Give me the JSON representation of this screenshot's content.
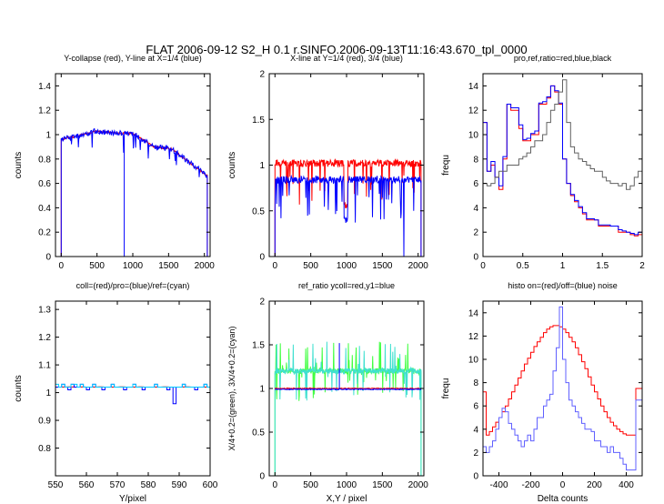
{
  "figure_title": "FLAT 2006-09-12 S2_H 0.1 r.SINFO.2006-09-13T11:16:43.670_tpl_0000",
  "chart_data": [
    {
      "type": "line",
      "title": "Y-collapse (red), Y-line at X=1/4 (blue)",
      "xlabel": "",
      "ylabel": "counts",
      "xlim": [
        -80,
        2080
      ],
      "ylim": [
        0,
        1.5
      ],
      "xticks": [
        0,
        500,
        1000,
        1500,
        2000
      ],
      "yticks": [
        0,
        0.2,
        0.4,
        0.6,
        0.8,
        1,
        1.2,
        1.4
      ],
      "series": [
        {
          "name": "Y-collapse",
          "color": "#ff0000",
          "style": "line",
          "kind": "ycollapse",
          "seed": 11,
          "noise": 0.008
        },
        {
          "name": "Y-line at X=1/4",
          "color": "#0000ff",
          "style": "line",
          "kind": "ycollapse",
          "seed": 12,
          "noise": 0.022
        }
      ]
    },
    {
      "type": "line",
      "title": "X-line at Y=1/4 (red), 3/4 (blue)",
      "xlabel": "",
      "ylabel": "counts",
      "xlim": [
        -80,
        2080
      ],
      "ylim": [
        0,
        2
      ],
      "xticks": [
        0,
        500,
        1000,
        1500,
        2000
      ],
      "yticks": [
        0,
        0.5,
        1,
        1.5,
        2
      ],
      "series": [
        {
          "name": "X-line at Y=1/4",
          "color": "#ff0000",
          "style": "line",
          "kind": "xline",
          "base": 1.02,
          "seed": 21
        },
        {
          "name": "X-line at Y=3/4",
          "color": "#0000ff",
          "style": "line",
          "kind": "xline",
          "base": 0.84,
          "seed": 22
        }
      ]
    },
    {
      "type": "line",
      "title": "pro,ref,ratio=red,blue,black",
      "xlabel": "",
      "ylabel": "frequ",
      "xlim": [
        0,
        2
      ],
      "ylim": [
        0,
        15
      ],
      "xticks": [
        0,
        0.5,
        1,
        1.5,
        2
      ],
      "yticks": [
        0,
        2,
        4,
        6,
        8,
        10,
        12,
        14
      ],
      "series": [
        {
          "name": "pro",
          "color": "#ff0000",
          "style": "step",
          "kind": "values",
          "x0": 0,
          "dx": 0.05,
          "values": [
            11,
            7,
            7.5,
            6.5,
            5.5,
            8,
            12.5,
            12,
            12,
            10.5,
            9.5,
            9.5,
            10,
            10,
            12.5,
            12.5,
            13,
            14,
            13.5,
            12.5,
            8,
            6,
            5,
            4.5,
            4,
            3.5,
            3,
            3,
            3,
            2.5,
            2.5,
            2.5,
            2.5,
            2.5,
            2,
            2,
            2,
            1.8,
            1.7,
            1.8,
            3.5
          ]
        },
        {
          "name": "ref",
          "color": "#0000ff",
          "style": "step",
          "kind": "values",
          "x0": 0,
          "dx": 0.05,
          "values": [
            11,
            7,
            7.8,
            6.5,
            5.8,
            8.2,
            12.5,
            12.2,
            12.2,
            10.8,
            9.6,
            9.7,
            10.1,
            10.3,
            12.6,
            12.7,
            13.1,
            14,
            13.6,
            12.6,
            8,
            6,
            5.1,
            4.6,
            4.1,
            3.6,
            3.1,
            3.1,
            3,
            2.6,
            2.6,
            2.6,
            2.5,
            2.5,
            2.2,
            2.1,
            2,
            1.9,
            1.8,
            2,
            4.5
          ]
        },
        {
          "name": "ratio",
          "color": "#606060",
          "style": "step",
          "kind": "values",
          "x0": 0,
          "dx": 0.05,
          "values": [
            6,
            5.8,
            6,
            6.5,
            7,
            7,
            7.5,
            7.5,
            7.5,
            8,
            8.2,
            8.5,
            9,
            9.5,
            9.5,
            10,
            11,
            12,
            12.5,
            13.5,
            14.5,
            11,
            9,
            8.5,
            8,
            7.8,
            7.5,
            7.2,
            7,
            7,
            6.5,
            6.2,
            6,
            6,
            5.8,
            6,
            5.5,
            5.8,
            6.5,
            7,
            7.5
          ]
        }
      ]
    },
    {
      "type": "line",
      "title": "coll=(red)/pro=(blue)/ref=(cyan)",
      "xlabel": "Y/pixel",
      "ylabel": "counts",
      "xlim": [
        550,
        600
      ],
      "ylim": [
        0.7,
        1.33
      ],
      "xticks": [
        550,
        560,
        570,
        580,
        590,
        600
      ],
      "yticks": [
        0.8,
        0.9,
        1,
        1.1,
        1.2,
        1.3
      ],
      "series": [
        {
          "name": "coll",
          "color": "#ff0000",
          "style": "line",
          "kind": "values",
          "x0": 550,
          "dx": 1,
          "values": [
            1.02,
            1.02,
            1.02,
            1.02,
            1.021,
            1.021,
            1.02,
            1.02,
            1.02,
            1.021,
            1.02,
            1.02,
            1.02,
            1.02,
            1.021,
            1.021,
            1.02,
            1.02,
            1.02,
            1.02,
            1.02,
            1.021,
            1.021,
            1.02,
            1.02,
            1.02,
            1.02,
            1.021,
            1.021,
            1.02,
            1.02,
            1.02,
            1.02,
            1.02,
            1.02,
            1.021,
            1.021,
            1.02,
            1.02,
            1.02,
            1.02,
            1.02,
            1.021,
            1.021,
            1.02,
            1.02,
            1.02,
            1.02,
            1.02,
            1.02,
            1.02
          ]
        },
        {
          "name": "pro",
          "color": "#0000ff",
          "style": "step",
          "kind": "values",
          "x0": 550,
          "dx": 1,
          "values": [
            1.02,
            1.02,
            1.03,
            1.02,
            1.01,
            1.03,
            1.02,
            1.02,
            1.03,
            1.02,
            1.01,
            1.02,
            1.03,
            1.02,
            1.02,
            1.01,
            1.02,
            1.02,
            1.03,
            1.02,
            1.02,
            1.02,
            1.01,
            1.02,
            1.02,
            1.03,
            1.02,
            1.02,
            1.01,
            1.02,
            1.02,
            1.02,
            1.03,
            1.02,
            1.02,
            1.02,
            1.01,
            1.02,
            0.96,
            1.02,
            1.02,
            1.03,
            1.02,
            1.02,
            1.02,
            1.01,
            1.02,
            1.02,
            1.03,
            1.02,
            1.02
          ]
        },
        {
          "name": "ref",
          "color": "#00c8ff",
          "style": "step",
          "kind": "values",
          "x0": 550,
          "dx": 1,
          "values": [
            1.03,
            1.02,
            1.03,
            1.02,
            1.02,
            1.03,
            1.03,
            1.02,
            1.03,
            1.02,
            1.02,
            1.02,
            1.03,
            1.02,
            1.02,
            1.02,
            1.02,
            1.02,
            1.03,
            1.02,
            1.02,
            1.02,
            1.02,
            1.02,
            1.02,
            1.03,
            1.02,
            1.02,
            1.02,
            1.02,
            1.02,
            1.02,
            1.03,
            1.02,
            1.02,
            1.02,
            1.02,
            1.02,
            1.02,
            1.02,
            1.02,
            1.03,
            1.02,
            1.02,
            1.02,
            1.02,
            1.02,
            1.02,
            1.03,
            1.02,
            1.02
          ]
        }
      ]
    },
    {
      "type": "line",
      "title": "ref_ratio ycoll=red,y1=blue",
      "xlabel": "X,Y / pixel",
      "ylabel": "X/4+0.2=(green), 3X/4+0.2=(cyan)",
      "xlim": [
        -80,
        2080
      ],
      "ylim": [
        0,
        2
      ],
      "xticks": [
        0,
        500,
        1000,
        1500,
        2000
      ],
      "yticks": [
        0,
        0.5,
        1,
        1.5,
        2
      ],
      "series": [
        {
          "name": "X/4+0.2",
          "color": "#40ff40",
          "style": "line",
          "kind": "spiky",
          "base": 1.2,
          "seed": 51
        },
        {
          "name": "3X/4+0.2",
          "color": "#40e0d0",
          "style": "line",
          "kind": "spiky",
          "base": 1.2,
          "seed": 52
        },
        {
          "name": "ycoll",
          "color": "#ff0000",
          "style": "line",
          "kind": "flat",
          "base": 1.0,
          "seed": 53
        },
        {
          "name": "y1",
          "color": "#0000ff",
          "style": "line",
          "kind": "flat",
          "base": 0.99,
          "seed": 54
        }
      ]
    },
    {
      "type": "line",
      "title": "histo on=(red)/off=(blue) noise",
      "xlabel": "Delta counts",
      "ylabel": "frequ",
      "xlim": [
        -500,
        500
      ],
      "ylim": [
        0,
        15
      ],
      "xticks": [
        -400,
        -200,
        0,
        200,
        400
      ],
      "yticks": [
        0,
        2,
        4,
        6,
        8,
        10,
        12,
        14
      ],
      "series": [
        {
          "name": "on",
          "color": "#ff0000",
          "style": "step",
          "kind": "values",
          "x0": -500,
          "dx": 20,
          "values": [
            7.2,
            3.5,
            3.8,
            4.2,
            4.6,
            5,
            5.5,
            6,
            6.6,
            7.2,
            7.8,
            8.4,
            9,
            9.6,
            10.1,
            10.6,
            11.1,
            11.5,
            11.9,
            12.3,
            12.6,
            12.8,
            12.9,
            12.9,
            12.8,
            12.6,
            12.3,
            11.9,
            11.5,
            11,
            10.4,
            9.8,
            9.2,
            8.5,
            7.8,
            7.2,
            6.6,
            6,
            5.5,
            5,
            4.6,
            4.3,
            4,
            3.8,
            3.6,
            3.5,
            3.5,
            3.5,
            7.5,
            7.5
          ]
        },
        {
          "name": "off",
          "color": "#6060ff",
          "style": "step",
          "kind": "values",
          "x0": -500,
          "dx": 20,
          "values": [
            2.5,
            2,
            2.5,
            3,
            4,
            5,
            5.8,
            5.5,
            4.5,
            4,
            3.5,
            3,
            2.5,
            3,
            3.5,
            3,
            4,
            5,
            5,
            6,
            6.5,
            7,
            9,
            11,
            14.5,
            10,
            8,
            6.5,
            6,
            5.5,
            5,
            4.5,
            4,
            4,
            3.8,
            3,
            3,
            2.5,
            2.5,
            2,
            2.5,
            2,
            2,
            1.5,
            1,
            0.5,
            0.5,
            0.5,
            6.5,
            6.5
          ]
        }
      ]
    }
  ]
}
